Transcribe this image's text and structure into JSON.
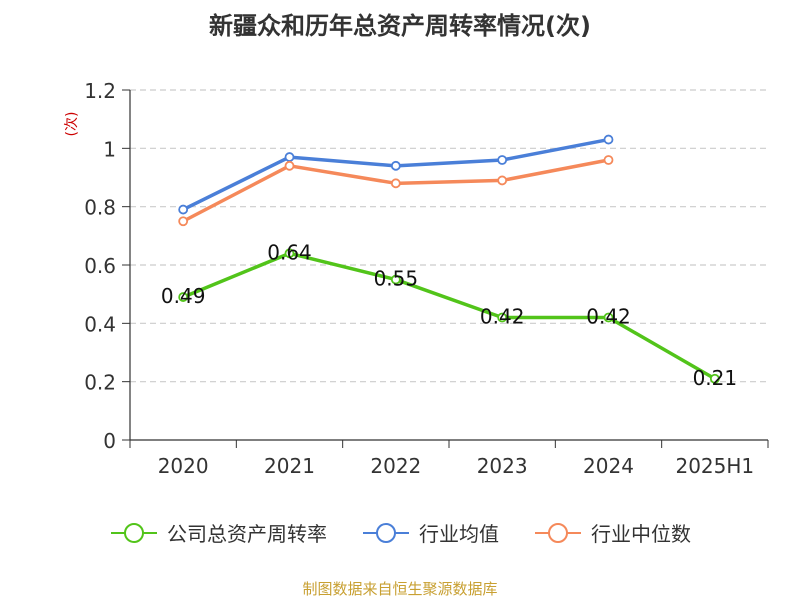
{
  "chart_data": {
    "type": "line",
    "title": "新疆众和历年总资产周转率情况(次)",
    "ylabel": "(次)",
    "xlabel": "",
    "categories": [
      "2020",
      "2021",
      "2022",
      "2023",
      "2024",
      "2025H1"
    ],
    "ylim": [
      0,
      1.2
    ],
    "yticks": [
      "0",
      "0.2",
      "0.4",
      "0.6",
      "0.8",
      "1",
      "1.2"
    ],
    "grid": true,
    "legend_position": "bottom",
    "series": [
      {
        "name": "公司总资产周转率",
        "color": "#52c41a",
        "values": [
          0.49,
          0.64,
          0.55,
          0.42,
          0.42,
          0.21
        ],
        "labels": [
          "0.49",
          "0.64",
          "0.55",
          "0.42",
          "0.42",
          "0.21"
        ]
      },
      {
        "name": "行业均值",
        "color": "#4a7fd8",
        "values": [
          0.79,
          0.97,
          0.94,
          0.96,
          1.03,
          null
        ]
      },
      {
        "name": "行业中位数",
        "color": "#f5895a",
        "values": [
          0.75,
          0.94,
          0.88,
          0.89,
          0.96,
          null
        ]
      }
    ]
  },
  "footer": {
    "source": "制图数据来自恒生聚源数据库"
  }
}
